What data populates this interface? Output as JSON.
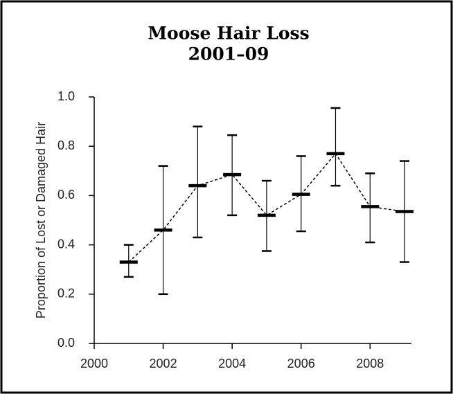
{
  "chart_data": {
    "type": "errorbar",
    "title": "Moose Hair Loss",
    "subtitle": "2001–09",
    "y_label": "Proportion of Lost or Damaged Hair",
    "x": [
      2001,
      2002,
      2003,
      2004,
      2005,
      2006,
      2007,
      2008,
      2009
    ],
    "values": [
      0.33,
      0.46,
      0.64,
      0.685,
      0.52,
      0.605,
      0.77,
      0.555,
      0.535
    ],
    "lower": [
      0.27,
      0.2,
      0.43,
      0.52,
      0.375,
      0.455,
      0.64,
      0.41,
      0.33
    ],
    "upper": [
      0.4,
      0.72,
      0.88,
      0.845,
      0.66,
      0.76,
      0.955,
      0.69,
      0.74
    ],
    "color": "#000000",
    "xlim": [
      2000,
      2009.2
    ],
    "xticks": [
      2000,
      2002,
      2004,
      2006,
      2008
    ],
    "ylim": [
      0,
      1
    ],
    "yticks": [
      {
        "value": 0,
        "label": "0.0"
      },
      {
        "value": 0.2,
        "label": "0.2"
      },
      {
        "value": 0.4,
        "label": "0.4"
      },
      {
        "value": 0.6,
        "label": "0.6"
      },
      {
        "value": 0.8,
        "label": "0.8"
      },
      {
        "value": 1,
        "label": "1.0"
      }
    ]
  }
}
